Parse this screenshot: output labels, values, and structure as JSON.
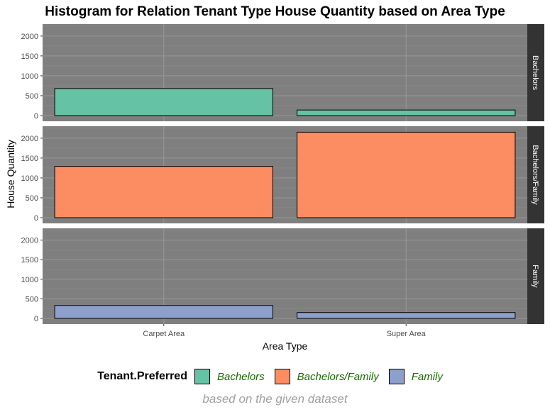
{
  "chart_data": {
    "type": "bar",
    "title": "Histogram for Relation Tenant Type House Quantity based on Area Type",
    "xlabel": "Area Type",
    "ylabel": "House Quantity",
    "categories": [
      "Carpet Area",
      "Super Area"
    ],
    "ylim": [
      0,
      2300
    ],
    "yticks": [
      0,
      500,
      1000,
      1500,
      2000
    ],
    "facet_var": "Tenant.Preferred",
    "legend_position": "bottom",
    "series": [
      {
        "name": "Bachelors",
        "values": [
          680,
          140
        ],
        "color": "#66C2A5"
      },
      {
        "name": "Bachelors/Family",
        "values": [
          1290,
          2150
        ],
        "color": "#FC8D62"
      },
      {
        "name": "Family",
        "values": [
          330,
          150
        ],
        "color": "#8DA0CB"
      }
    ],
    "caption": "based on the given dataset",
    "panel_background": "#7f7f7f",
    "strip_background": "#333333"
  },
  "legend": {
    "title": "Tenant.Preferred",
    "items": [
      {
        "label": "Bachelors",
        "color": "#66C2A5"
      },
      {
        "label": "Bachelors/Family",
        "color": "#FC8D62"
      },
      {
        "label": "Family",
        "color": "#8DA0CB"
      }
    ]
  }
}
